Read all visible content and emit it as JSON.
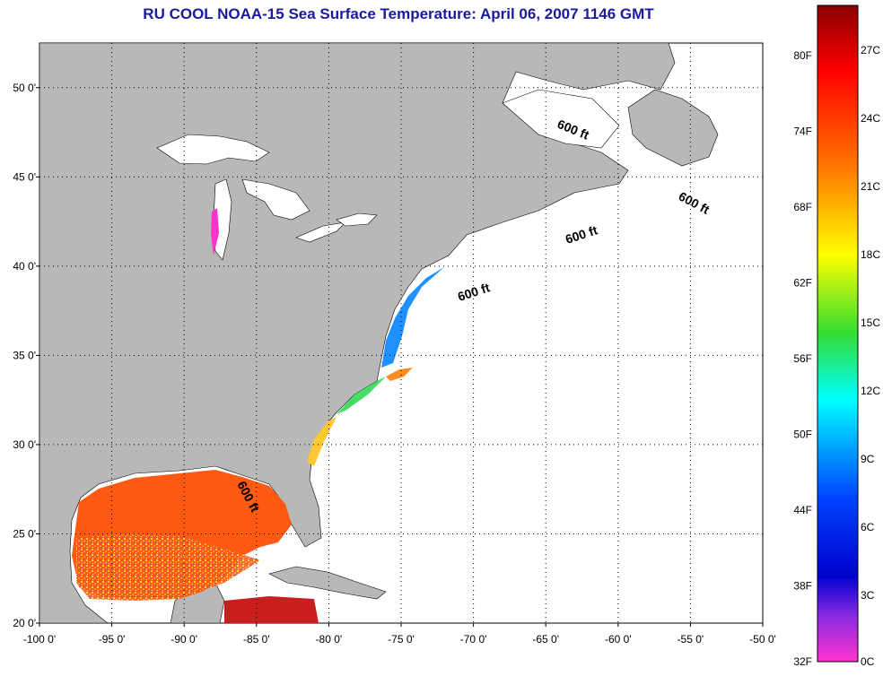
{
  "title": "RU COOL  NOAA-15  Sea Surface Temperature:  April 06, 2007 1146 GMT",
  "map": {
    "lon_range": [
      -100,
      -50
    ],
    "lat_range": [
      20,
      52.5
    ],
    "lon_ticks": [
      "-100 0'",
      "-95 0'",
      "-90 0'",
      "-85 0'",
      "-80 0'",
      "-75 0'",
      "-70 0'",
      "-65 0'",
      "-60 0'",
      "-55 0'",
      "-50 0'"
    ],
    "lat_ticks": [
      "20 0'",
      "25 0'",
      "30 0'",
      "35 0'",
      "40 0'",
      "45 0'",
      "50 0'"
    ],
    "grid": true,
    "land_color": "#b8b8b8",
    "contour_labels": [
      "600 ft",
      "600 ft",
      "600 ft",
      "600 ft",
      "600 ft"
    ]
  },
  "colorbar": {
    "fahrenheit": [
      "80F",
      "74F",
      "68F",
      "62F",
      "56F",
      "50F",
      "44F",
      "38F",
      "32F"
    ],
    "celsius": [
      "27C",
      "24C",
      "21C",
      "18C",
      "15C",
      "12C",
      "9C",
      "6C",
      "3C",
      "0C"
    ],
    "colors": [
      "#8b0000",
      "#ff0000",
      "#ff7a00",
      "#ffff00",
      "#33dd33",
      "#00ffff",
      "#0044ff",
      "#0000cc",
      "#8a2be2",
      "#ff33cc"
    ]
  }
}
